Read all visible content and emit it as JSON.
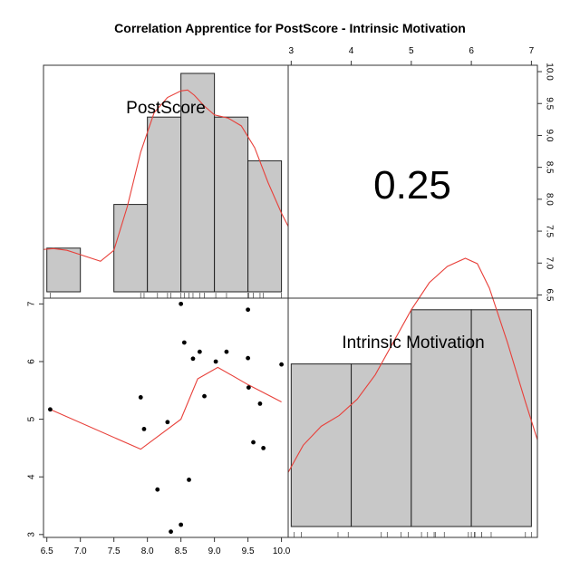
{
  "chart_data": {
    "type": "pairs",
    "title": "Correlation Apprentice for PostScore - Intrinsic Motivation",
    "variables": [
      "PostScore",
      "Intrinsic Motivation"
    ],
    "correlation": "0.25",
    "postscore_axis": {
      "range": [
        6.45,
        10.1
      ],
      "ticks": [
        "6.5",
        "7.0",
        "7.5",
        "8.0",
        "8.5",
        "9.0",
        "9.5",
        "10.0"
      ]
    },
    "motivation_axis": {
      "range": [
        2.95,
        7.1
      ],
      "ticks": [
        "3",
        "4",
        "5",
        "6",
        "7"
      ]
    },
    "postscore_histogram": {
      "bins": [
        [
          6.5,
          7.0
        ],
        [
          7.0,
          7.5
        ],
        [
          7.5,
          8.0
        ],
        [
          8.0,
          8.5
        ],
        [
          8.5,
          9.0
        ],
        [
          9.0,
          9.5
        ],
        [
          9.5,
          10.0
        ]
      ],
      "heights": [
        1,
        0,
        2,
        4,
        5,
        4,
        3
      ]
    },
    "motivation_histogram": {
      "bins": [
        [
          3,
          4
        ],
        [
          4,
          5
        ],
        [
          5,
          6
        ],
        [
          6,
          7
        ]
      ],
      "heights": [
        3,
        3,
        4,
        4
      ]
    },
    "postscore_density": [
      [
        6.45,
        0.97
      ],
      [
        6.6,
        0.99
      ],
      [
        6.8,
        0.95
      ],
      [
        7.0,
        0.85
      ],
      [
        7.3,
        0.7
      ],
      [
        7.5,
        0.95
      ],
      [
        7.7,
        1.95
      ],
      [
        7.9,
        3.2
      ],
      [
        8.1,
        4.1
      ],
      [
        8.3,
        4.45
      ],
      [
        8.5,
        4.6
      ],
      [
        8.6,
        4.62
      ],
      [
        8.7,
        4.5
      ],
      [
        8.85,
        4.25
      ],
      [
        9.0,
        4.05
      ],
      [
        9.2,
        3.98
      ],
      [
        9.4,
        3.8
      ],
      [
        9.6,
        3.3
      ],
      [
        9.8,
        2.5
      ],
      [
        10.0,
        1.8
      ],
      [
        10.1,
        1.5
      ]
    ],
    "motivation_density": [
      [
        2.95,
        1.0
      ],
      [
        3.2,
        1.5
      ],
      [
        3.5,
        1.85
      ],
      [
        3.8,
        2.05
      ],
      [
        4.1,
        2.35
      ],
      [
        4.4,
        2.8
      ],
      [
        4.7,
        3.4
      ],
      [
        5.0,
        4.0
      ],
      [
        5.3,
        4.5
      ],
      [
        5.6,
        4.8
      ],
      [
        5.9,
        4.95
      ],
      [
        6.1,
        4.85
      ],
      [
        6.3,
        4.4
      ],
      [
        6.6,
        3.4
      ],
      [
        6.9,
        2.3
      ],
      [
        7.1,
        1.6
      ]
    ],
    "postscore_rug": [
      6.55,
      7.9,
      7.95,
      8.15,
      8.3,
      8.35,
      8.5,
      8.55,
      8.62,
      8.68,
      8.78,
      8.85,
      9.02,
      9.18,
      9.5,
      9.51,
      9.58,
      9.68,
      9.73,
      10.0
    ],
    "motivation_rug": [
      3.05,
      3.17,
      3.78,
      3.95,
      4.5,
      4.6,
      4.83,
      4.95,
      5.17,
      5.27,
      5.38,
      5.4,
      5.55,
      5.95,
      6.0,
      6.05,
      6.06,
      6.17,
      6.17,
      6.33,
      6.9,
      7.0
    ],
    "points": [
      {
        "x": 6.55,
        "y": 5.17
      },
      {
        "x": 7.9,
        "y": 5.38
      },
      {
        "x": 7.95,
        "y": 4.83
      },
      {
        "x": 8.3,
        "y": 4.95
      },
      {
        "x": 8.15,
        "y": 3.78
      },
      {
        "x": 8.35,
        "y": 3.05
      },
      {
        "x": 8.5,
        "y": 3.17
      },
      {
        "x": 8.62,
        "y": 3.95
      },
      {
        "x": 8.5,
        "y": 7.0
      },
      {
        "x": 8.55,
        "y": 6.33
      },
      {
        "x": 8.68,
        "y": 6.05
      },
      {
        "x": 8.78,
        "y": 6.17
      },
      {
        "x": 8.85,
        "y": 5.4
      },
      {
        "x": 9.02,
        "y": 6.0
      },
      {
        "x": 9.18,
        "y": 6.17
      },
      {
        "x": 9.5,
        "y": 6.9
      },
      {
        "x": 9.5,
        "y": 6.06
      },
      {
        "x": 9.51,
        "y": 5.55
      },
      {
        "x": 9.58,
        "y": 4.6
      },
      {
        "x": 9.68,
        "y": 5.27
      },
      {
        "x": 9.73,
        "y": 4.5
      },
      {
        "x": 10.0,
        "y": 5.95
      }
    ],
    "smooth_line": [
      [
        6.55,
        5.17
      ],
      [
        7.9,
        4.48
      ],
      [
        8.5,
        5.0
      ],
      [
        8.75,
        5.7
      ],
      [
        9.05,
        5.9
      ],
      [
        9.5,
        5.6
      ],
      [
        10.0,
        5.3
      ]
    ]
  }
}
